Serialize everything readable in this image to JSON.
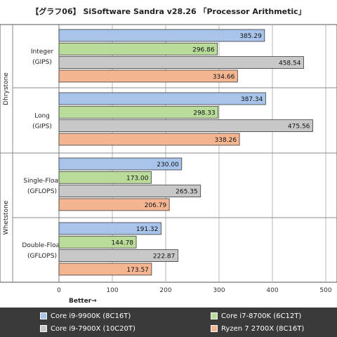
{
  "title": "【グラフ06】 SiSoftware Sandra v28.26 「Processor Arithmetic」",
  "chart_data": {
    "type": "bar",
    "orientation": "horizontal",
    "title": "【グラフ06】 SiSoftware Sandra v28.26 「Processor Arithmetic」",
    "xlabel": "Better→",
    "xlim": [
      0,
      500
    ],
    "xticks": [
      "0",
      "100",
      "200",
      "300",
      "400",
      "500"
    ],
    "grid": true,
    "legend_position": "bottom",
    "groups": [
      {
        "label": "Dhrystone",
        "categories": [
          "Integer\n(GIPS)",
          "Long\n(GIPS)"
        ]
      },
      {
        "label": "Whetstone",
        "categories": [
          "Single-Float\n(GFLOPS)",
          "Double-Float\n(GFLOPS)"
        ]
      }
    ],
    "categories": [
      "Integer\n(GIPS)",
      "Long\n(GIPS)",
      "Single-Float\n(GFLOPS)",
      "Double-Float\n(GFLOPS)"
    ],
    "series": [
      {
        "name": "Core i9-9900K (8C16T)",
        "color": "#a9c4eb",
        "values": [
          385.29,
          387.34,
          230.0,
          191.32
        ],
        "labels": [
          "385.29",
          "387.34",
          "230.00",
          "191.32"
        ]
      },
      {
        "name": "Core i7-8700K (6C12T)",
        "color": "#b9dc9b",
        "values": [
          296.86,
          298.33,
          173.0,
          144.78
        ],
        "labels": [
          "296.86",
          "298.33",
          "173.00",
          "144.78"
        ]
      },
      {
        "name": "Core i9-7900X (10C20T)",
        "color": "#c8c8c8",
        "values": [
          458.54,
          475.56,
          265.35,
          222.87
        ],
        "labels": [
          "458.54",
          "475.56",
          "265.35",
          "222.87"
        ]
      },
      {
        "name": "Ryzen 7 2700X (8C16T)",
        "color": "#f5b591",
        "values": [
          334.66,
          338.26,
          206.79,
          173.57
        ],
        "labels": [
          "334.66",
          "338.26",
          "206.79",
          "173.57"
        ]
      }
    ]
  },
  "legend": [
    {
      "label": "Core i9-9900K (8C16T)",
      "color": "#a9c4eb"
    },
    {
      "label": "Core i7-8700K (6C12T)",
      "color": "#b9dc9b"
    },
    {
      "label": "Core i9-7900X (10C20T)",
      "color": "#c8c8c8"
    },
    {
      "label": "Ryzen 7 2700X (8C16T)",
      "color": "#f5b591"
    }
  ]
}
